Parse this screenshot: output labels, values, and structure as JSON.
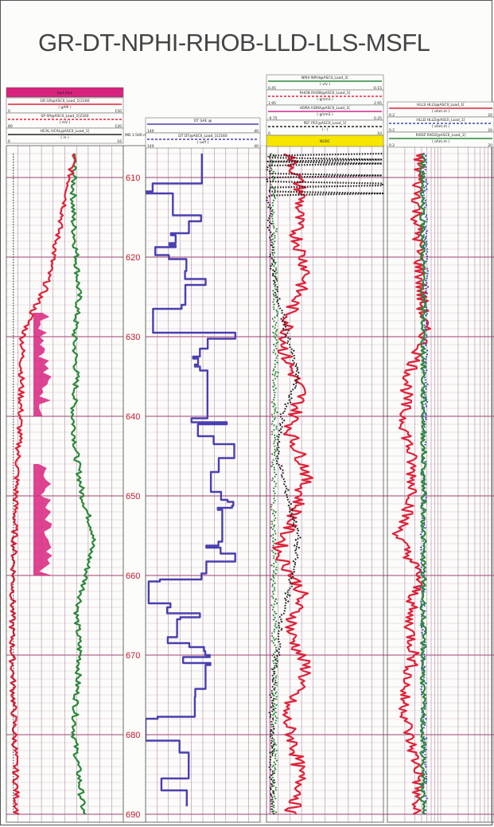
{
  "title": "GR-DT-NPHI-RHOB-LLD-LLS-MSFL",
  "chart_data": {
    "type": "line",
    "title": "GR-DT-NPHI-RHOB-LLD-LLS-MSFL",
    "depth_header": "MD 1:500 m",
    "depth_ticks": [
      610,
      620,
      630,
      640,
      650,
      660,
      670,
      680,
      690
    ],
    "ylim": [
      606,
      691
    ],
    "tracks": [
      {
        "name": "track-1",
        "fill_label": "bad hole",
        "headers": [
          {
            "curve": "GR GR@ASCII_Load_1[2160",
            "unit": "( gAPI )",
            "scale": [
              "0",
              "150"
            ]
          },
          {
            "curve": "SP SP@ASCII_Load_1[2160",
            "unit": "( mV )",
            "scale": [
              "80",
              "120"
            ]
          },
          {
            "curve": "HCAL HCAL@ASCII_Load_1[",
            "unit": "( in )",
            "scale": [
              "6",
              "16"
            ]
          }
        ],
        "series": [
          {
            "curve": "GR",
            "color": "#2a8a3a",
            "points": [
              [
                607,
                0.58
              ],
              [
                615,
                0.57
              ],
              [
                620,
                0.6
              ],
              [
                625,
                0.62
              ],
              [
                630,
                0.58
              ],
              [
                635,
                0.6
              ],
              [
                640,
                0.57
              ],
              [
                645,
                0.6
              ],
              [
                650,
                0.65
              ],
              [
                655,
                0.75
              ],
              [
                660,
                0.68
              ],
              [
                665,
                0.6
              ],
              [
                670,
                0.63
              ],
              [
                675,
                0.6
              ],
              [
                680,
                0.58
              ],
              [
                685,
                0.62
              ],
              [
                690,
                0.66
              ]
            ]
          },
          {
            "curve": "SP",
            "color": "#e0223a",
            "points": [
              [
                607,
                0.58
              ],
              [
                612,
                0.52
              ],
              [
                616,
                0.46
              ],
              [
                620,
                0.4
              ],
              [
                624,
                0.33
              ],
              [
                627,
                0.22
              ],
              [
                630,
                0.14
              ],
              [
                635,
                0.13
              ],
              [
                640,
                0.12
              ],
              [
                645,
                0.1
              ],
              [
                650,
                0.08
              ],
              [
                655,
                0.07
              ],
              [
                660,
                0.06
              ],
              [
                665,
                0.05
              ],
              [
                670,
                0.05
              ],
              [
                675,
                0.06
              ],
              [
                680,
                0.07
              ],
              [
                685,
                0.08
              ],
              [
                690,
                0.09
              ]
            ]
          },
          {
            "curve": "HCAL",
            "color": "#222222",
            "points": [
              [
                607,
                0.06
              ],
              [
                630,
                0.06
              ],
              [
                660,
                0.06
              ],
              [
                690,
                0.06
              ]
            ]
          }
        ]
      },
      {
        "name": "track-2",
        "headers": [
          {
            "curve": "DT SAE @",
            "unit": "",
            "scale": [
              "140",
              "40"
            ]
          },
          {
            "curve": "DT DT@ASCII_Load_1[2160",
            "unit": "( us/f )",
            "scale": [
              "140",
              "40"
            ]
          }
        ],
        "series": [
          {
            "curve": "DT",
            "color": "#4a3fb0",
            "points": [
              [
                607,
                0.65
              ],
              [
                612,
                0.12
              ],
              [
                615,
                0.4
              ],
              [
                618,
                0.2
              ],
              [
                622,
                0.35
              ],
              [
                625,
                0.5
              ],
              [
                627,
                0.05
              ],
              [
                630,
                0.7
              ],
              [
                633,
                0.45
              ],
              [
                636,
                0.85
              ],
              [
                640,
                0.5
              ],
              [
                644,
                0.8
              ],
              [
                648,
                0.4
              ],
              [
                652,
                0.75
              ],
              [
                655,
                0.5
              ],
              [
                658,
                0.7
              ],
              [
                662,
                0.02
              ],
              [
                665,
                0.45
              ],
              [
                668,
                0.2
              ],
              [
                671,
                0.55
              ],
              [
                675,
                0.35
              ],
              [
                679,
                0.05
              ],
              [
                683,
                0.6
              ],
              [
                686,
                0.1
              ],
              [
                689,
                0.85
              ]
            ]
          }
        ]
      },
      {
        "name": "track-3",
        "fill_label": "NGRC",
        "headers": [
          {
            "curve": "NPHI NPHI@ASCII_Load_1[",
            "unit": "( v/v )",
            "scale": [
              "0.45",
              "-0.15"
            ]
          },
          {
            "curve": "RHOB RHOB@ASCII_Load_1[",
            "unit": "( g/cm3 )",
            "scale": [
              "1.95",
              "2.95"
            ]
          },
          {
            "curve": "HDRA HDRA@ASCII_Load_1[",
            "unit": "( g/cm3 )",
            "scale": [
              "-0.75",
              "0.25"
            ]
          },
          {
            "curve": "PEF PEF@ASCII_Load_1[",
            "unit": "( - )",
            "scale": [
              "0",
              "10"
            ]
          }
        ],
        "series": [
          {
            "curve": "NPHI",
            "color": "#2a8a3a",
            "points": [
              [
                607,
                0.05
              ],
              [
                630,
                0.08
              ],
              [
                650,
                0.06
              ],
              [
                670,
                0.07
              ],
              [
                690,
                0.06
              ]
            ]
          },
          {
            "curve": "RHOB",
            "color": "#e0223a",
            "points": [
              [
                607,
                0.2
              ],
              [
                612,
                0.3
              ],
              [
                617,
                0.25
              ],
              [
                622,
                0.35
              ],
              [
                627,
                0.2
              ],
              [
                632,
                0.15
              ],
              [
                637,
                0.3
              ],
              [
                642,
                0.2
              ],
              [
                647,
                0.35
              ],
              [
                652,
                0.25
              ],
              [
                657,
                0.1
              ],
              [
                662,
                0.3
              ],
              [
                667,
                0.2
              ],
              [
                672,
                0.35
              ],
              [
                677,
                0.15
              ],
              [
                682,
                0.25
              ],
              [
                687,
                0.3
              ],
              [
                690,
                0.2
              ]
            ]
          },
          {
            "curve": "HDRA",
            "color": "#d02a90",
            "points": [
              [
                607,
                0.03
              ],
              [
                650,
                0.03
              ],
              [
                690,
                0.03
              ]
            ]
          },
          {
            "curve": "PEF",
            "color": "#222222",
            "points": [
              [
                607,
                1.0
              ],
              [
                620,
                1.05
              ],
              [
                625,
                1.1
              ],
              [
                630,
                1.2
              ],
              [
                635,
                1.3
              ],
              [
                640,
                1.15
              ],
              [
                645,
                1.1
              ],
              [
                650,
                1.2
              ],
              [
                655,
                1.3
              ],
              [
                660,
                1.25
              ],
              [
                665,
                1.15
              ],
              [
                670,
                1.1
              ],
              [
                675,
                1.05
              ],
              [
                680,
                1.05
              ],
              [
                690,
                1.05
              ]
            ]
          }
        ]
      },
      {
        "name": "track-4",
        "headers": [
          {
            "curve": "HLLS HLLS@ASCII_Load_1[",
            "unit": "( ohm.m )",
            "scale": [
              "0.2",
              "20"
            ]
          },
          {
            "curve": "HLLD HLLD@ASCII_Load_1[",
            "unit": "( ohm.m )",
            "scale": [
              "0.2",
              "20"
            ]
          },
          {
            "curve": "RXOZ RXOZ@ASCII_Load_1[",
            "unit": "( ohm.m )",
            "scale": [
              "0.2",
              "20"
            ]
          }
        ],
        "series": [
          {
            "curve": "HLLS",
            "color": "#e0223a",
            "points": [
              [
                607,
                0.3
              ],
              [
                615,
                0.28
              ],
              [
                620,
                0.3
              ],
              [
                625,
                0.32
              ],
              [
                630,
                0.35
              ],
              [
                635,
                0.2
              ],
              [
                640,
                0.15
              ],
              [
                645,
                0.22
              ],
              [
                650,
                0.25
              ],
              [
                655,
                0.1
              ],
              [
                660,
                0.3
              ],
              [
                665,
                0.2
              ],
              [
                670,
                0.25
              ],
              [
                675,
                0.15
              ],
              [
                680,
                0.2
              ],
              [
                685,
                0.3
              ],
              [
                690,
                0.25
              ]
            ]
          },
          {
            "curve": "HLLD",
            "color": "#3a4ab0",
            "points": [
              [
                607,
                0.35
              ],
              [
                630,
                0.36
              ],
              [
                660,
                0.33
              ],
              [
                690,
                0.35
              ]
            ]
          },
          {
            "curve": "RXOZ",
            "color": "#2a8a3a",
            "points": [
              [
                607,
                0.33
              ],
              [
                650,
                0.34
              ],
              [
                690,
                0.33
              ]
            ]
          }
        ]
      }
    ]
  }
}
